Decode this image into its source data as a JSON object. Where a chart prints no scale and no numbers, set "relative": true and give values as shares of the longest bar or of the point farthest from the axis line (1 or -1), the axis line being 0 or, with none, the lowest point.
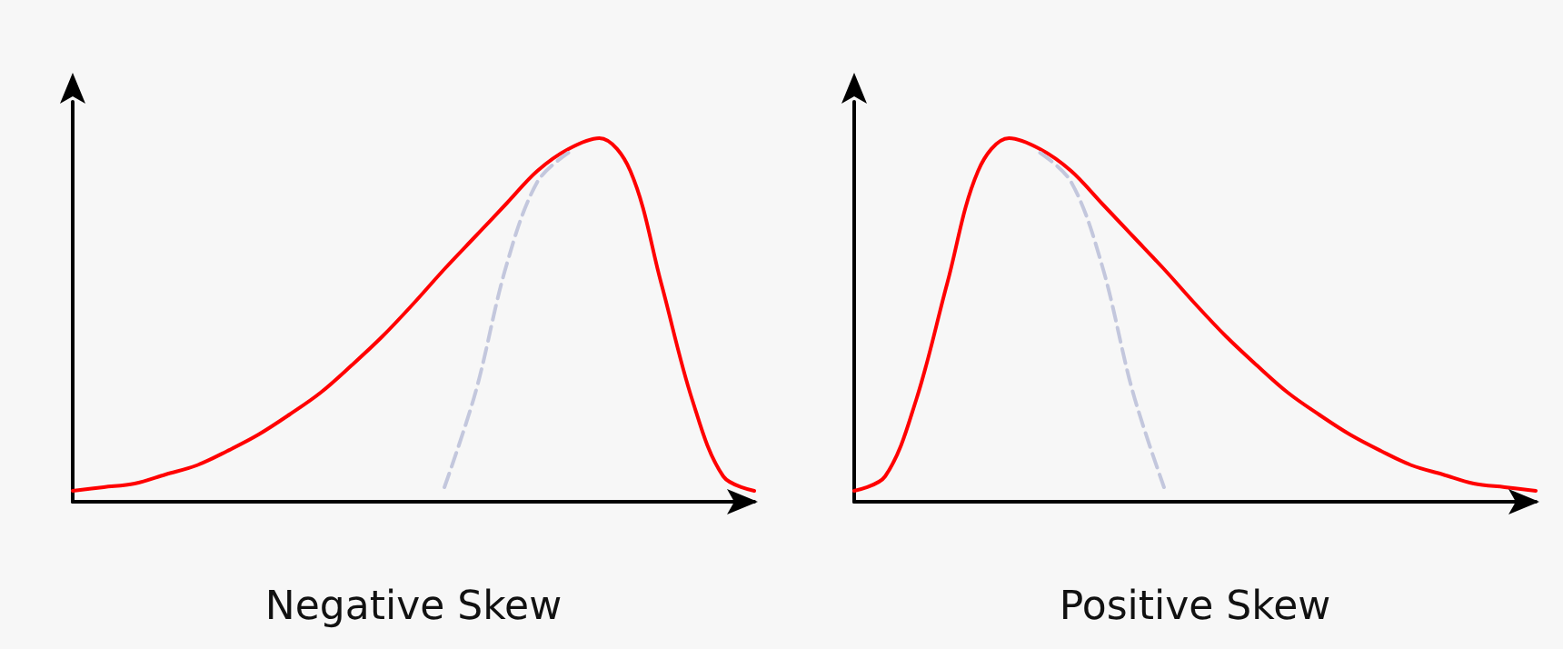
{
  "chart_data": [
    {
      "type": "line",
      "relative": true,
      "xlabel": "Negative Skew",
      "marker": "none",
      "grid": false,
      "categories": [
        null,
        null,
        null,
        null,
        null,
        null,
        null,
        null,
        null,
        null,
        null,
        null,
        null,
        null,
        null,
        null,
        null,
        null,
        null,
        null,
        null,
        null,
        null
      ],
      "series": [
        {
          "color": "#ff0000",
          "line_style": "solid",
          "values": [
            0.03,
            0.04,
            0.05,
            0.075,
            0.1,
            0.14,
            0.185,
            0.24,
            0.3,
            0.375,
            0.455,
            0.545,
            0.64,
            0.73,
            0.82,
            0.91,
            0.97,
            1.0,
            0.91,
            0.6,
            0.28,
            0.07,
            0.03
          ]
        },
        {
          "color": "#c3c7dd",
          "line_style": "dashed",
          "values": [
            null,
            null,
            null,
            null,
            null,
            null,
            null,
            null,
            null,
            null,
            null,
            null,
            0.04,
            0.3,
            0.65,
            0.88,
            0.96,
            null,
            null,
            null,
            null,
            null,
            null
          ]
        }
      ]
    },
    {
      "type": "line",
      "relative": true,
      "xlabel": "Positive Skew",
      "marker": "none",
      "grid": false,
      "categories": [
        null,
        null,
        null,
        null,
        null,
        null,
        null,
        null,
        null,
        null,
        null,
        null,
        null,
        null,
        null,
        null,
        null,
        null,
        null,
        null,
        null,
        null,
        null
      ],
      "series": [
        {
          "color": "#ff0000",
          "line_style": "solid",
          "values": [
            0.03,
            0.07,
            0.28,
            0.6,
            0.91,
            1.0,
            0.97,
            0.91,
            0.82,
            0.73,
            0.64,
            0.545,
            0.455,
            0.375,
            0.3,
            0.24,
            0.185,
            0.14,
            0.1,
            0.075,
            0.05,
            0.04,
            0.03
          ]
        },
        {
          "color": "#c3c7dd",
          "line_style": "dashed",
          "values": [
            null,
            null,
            null,
            null,
            null,
            null,
            0.96,
            0.88,
            0.65,
            0.3,
            0.04,
            null,
            null,
            null,
            null,
            null,
            null,
            null,
            null,
            null,
            null,
            null,
            null
          ]
        }
      ]
    }
  ]
}
